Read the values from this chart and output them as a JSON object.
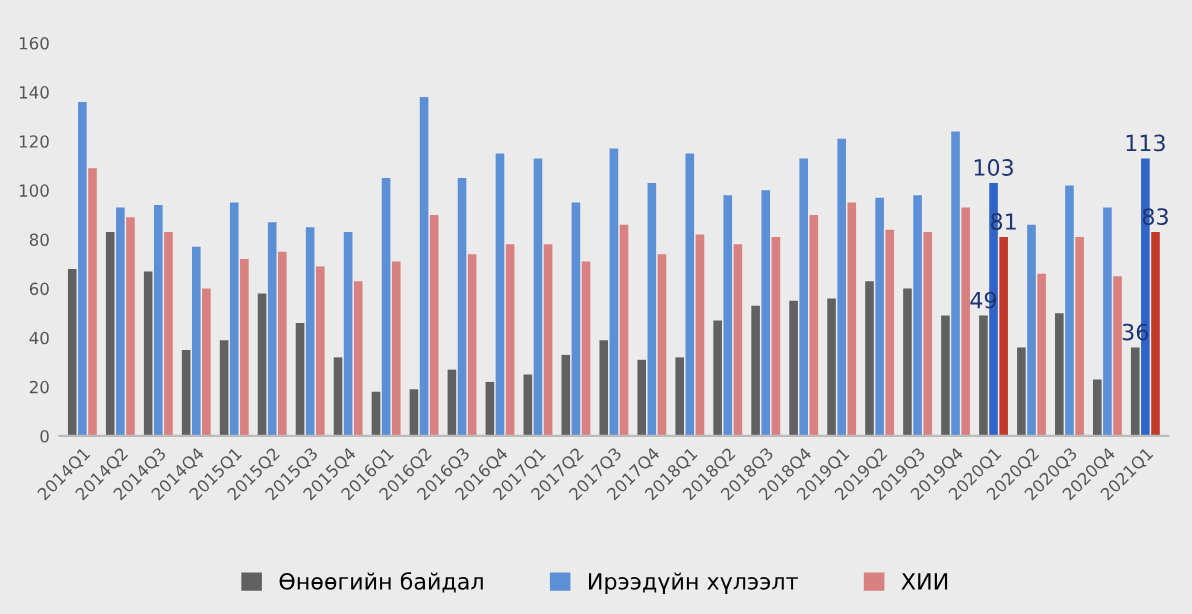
{
  "chart_data": {
    "type": "bar",
    "categories": [
      "2014Q1",
      "2014Q2",
      "2014Q3",
      "2014Q4",
      "2015Q1",
      "2015Q2",
      "2015Q3",
      "2015Q4",
      "2016Q1",
      "2016Q2",
      "2016Q3",
      "2016Q4",
      "2017Q1",
      "2017Q2",
      "2017Q3",
      "2017Q4",
      "2018Q1",
      "2018Q2",
      "2018Q3",
      "2018Q4",
      "2019Q1",
      "2019Q2",
      "2019Q3",
      "2019Q4",
      "2020Q1",
      "2020Q2",
      "2020Q3",
      "2020Q4",
      "2021Q1"
    ],
    "series": [
      {
        "name": "Өнөөгийн байдал",
        "color": "#616161",
        "values": [
          68,
          83,
          67,
          35,
          39,
          58,
          46,
          32,
          18,
          19,
          27,
          22,
          25,
          33,
          39,
          31,
          32,
          47,
          53,
          55,
          56,
          63,
          60,
          49,
          49,
          36,
          50,
          23,
          36
        ],
        "value_labels": [
          null,
          null,
          null,
          null,
          null,
          null,
          null,
          null,
          null,
          null,
          null,
          null,
          null,
          null,
          null,
          null,
          null,
          null,
          null,
          null,
          null,
          null,
          null,
          null,
          "49",
          null,
          null,
          null,
          "36"
        ]
      },
      {
        "name": "Ирээдүйн хүлээлт",
        "color": "#5b8fd6",
        "colors": [
          "#5b8fd6",
          "#5b8fd6",
          "#5b8fd6",
          "#5b8fd6",
          "#5b8fd6",
          "#5b8fd6",
          "#5b8fd6",
          "#5b8fd6",
          "#5b8fd6",
          "#5b8fd6",
          "#5b8fd6",
          "#5b8fd6",
          "#5b8fd6",
          "#5b8fd6",
          "#5b8fd6",
          "#5b8fd6",
          "#5b8fd6",
          "#5b8fd6",
          "#5b8fd6",
          "#5b8fd6",
          "#5b8fd6",
          "#5b8fd6",
          "#5b8fd6",
          "#5b8fd6",
          "#2f64c8",
          "#5b8fd6",
          "#5b8fd6",
          "#5b8fd6",
          "#2f64c8"
        ],
        "values": [
          136,
          93,
          94,
          77,
          95,
          87,
          85,
          83,
          105,
          138,
          105,
          115,
          113,
          95,
          117,
          103,
          115,
          98,
          100,
          113,
          121,
          97,
          98,
          124,
          103,
          86,
          102,
          93,
          113
        ],
        "value_labels": [
          null,
          null,
          null,
          null,
          null,
          null,
          null,
          null,
          null,
          null,
          null,
          null,
          null,
          null,
          null,
          null,
          null,
          null,
          null,
          null,
          null,
          null,
          null,
          null,
          "103",
          null,
          null,
          null,
          "113"
        ]
      },
      {
        "name": "ХИИ",
        "color": "#d98080",
        "colors": [
          "#d98080",
          "#d98080",
          "#d98080",
          "#d98080",
          "#d98080",
          "#d98080",
          "#d98080",
          "#d98080",
          "#d98080",
          "#d98080",
          "#d98080",
          "#d98080",
          "#d98080",
          "#d98080",
          "#d98080",
          "#d98080",
          "#d98080",
          "#d98080",
          "#d98080",
          "#d98080",
          "#d98080",
          "#d98080",
          "#d98080",
          "#d98080",
          "#c0392b",
          "#d98080",
          "#d98080",
          "#d98080",
          "#c0392b"
        ],
        "values": [
          109,
          89,
          83,
          60,
          72,
          75,
          69,
          63,
          71,
          90,
          74,
          78,
          78,
          71,
          86,
          74,
          82,
          78,
          81,
          90,
          95,
          84,
          83,
          93,
          81,
          66,
          81,
          65,
          83
        ],
        "value_labels": [
          null,
          null,
          null,
          null,
          null,
          null,
          null,
          null,
          null,
          null,
          null,
          null,
          null,
          null,
          null,
          null,
          null,
          null,
          null,
          null,
          null,
          null,
          null,
          null,
          "81",
          null,
          null,
          null,
          "83"
        ]
      }
    ],
    "ylim": [
      0,
      160
    ],
    "yticks": [
      0,
      20,
      40,
      60,
      80,
      100,
      120,
      140,
      160
    ],
    "grid": false,
    "legend": "bottom"
  }
}
